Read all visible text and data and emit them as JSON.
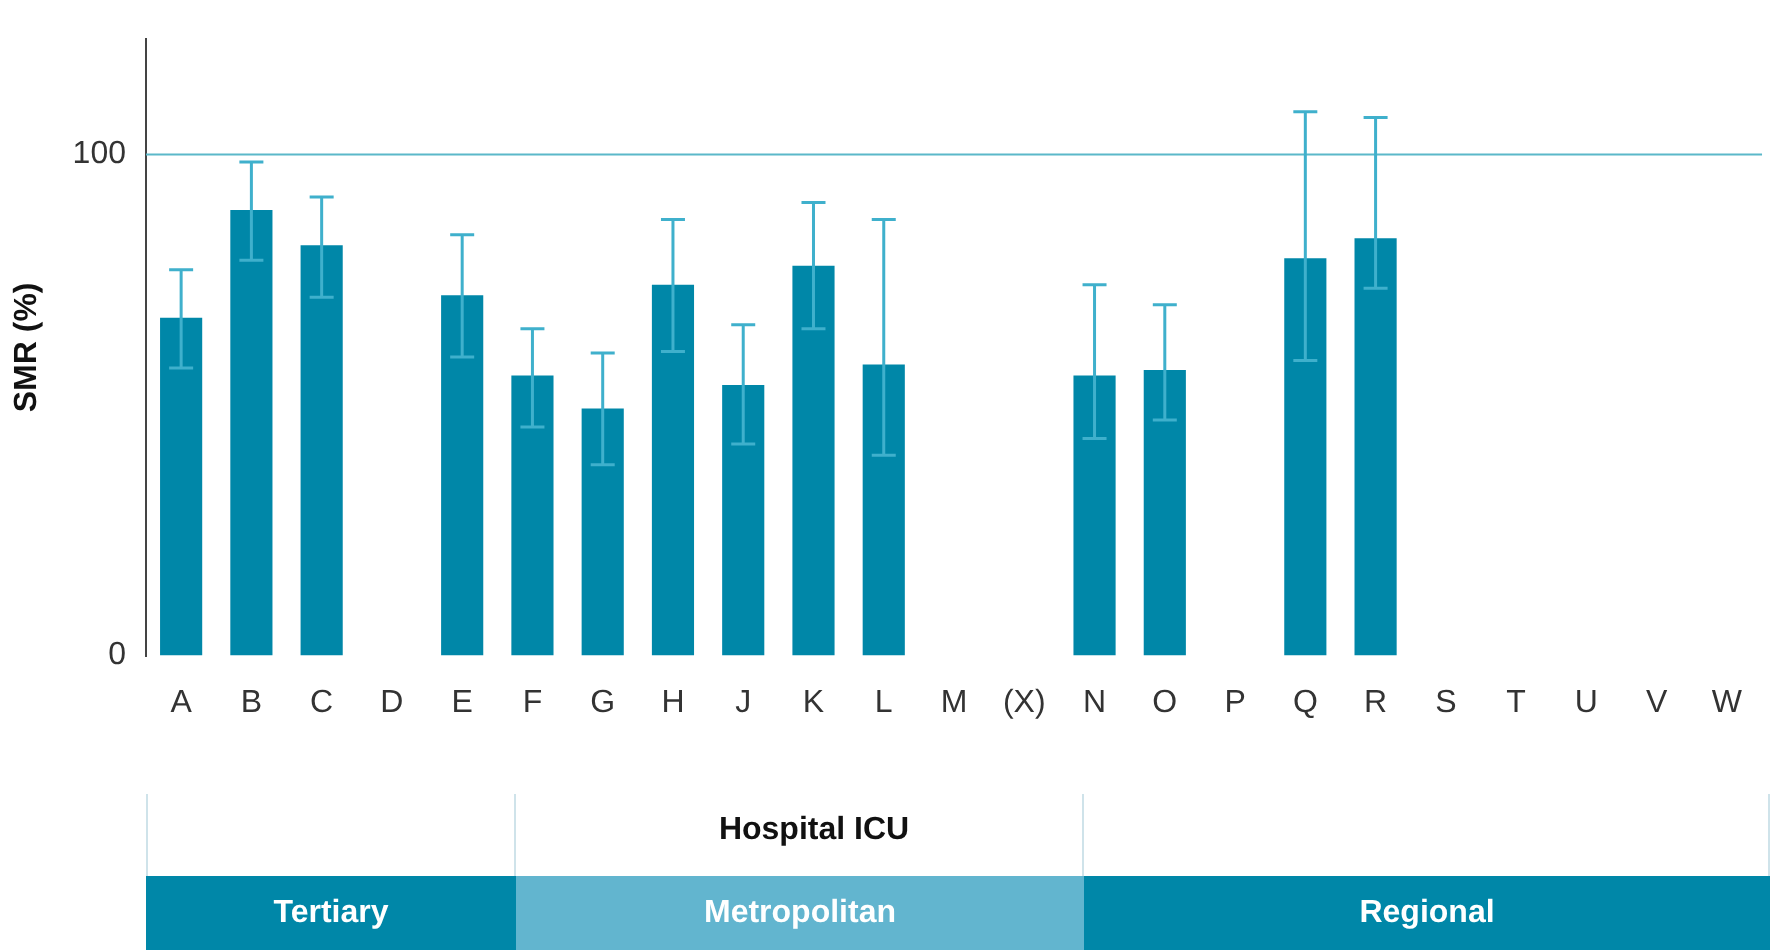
{
  "chart_data": {
    "type": "bar",
    "xlabel": "Hospital ICU",
    "ylabel": "SMR (%)",
    "categories": [
      "A",
      "B",
      "C",
      "D",
      "E",
      "F",
      "G",
      "H",
      "J",
      "K",
      "L",
      "M",
      "(X)",
      "N",
      "O",
      "P",
      "Q",
      "R",
      "S",
      "T",
      "U",
      "V",
      "W"
    ],
    "values": [
      67.4,
      88.9,
      81.9,
      null,
      71.9,
      55.9,
      49.3,
      74,
      54,
      77.8,
      58.1,
      null,
      null,
      55.9,
      57,
      null,
      79.3,
      83.3,
      null,
      null,
      null,
      null,
      null
    ],
    "errors": [
      [
        57.4,
        77
      ],
      [
        78.9,
        98.5
      ],
      [
        71.5,
        91.5
      ],
      null,
      [
        59.6,
        84
      ],
      [
        45.6,
        65.2
      ],
      [
        38.1,
        60.4
      ],
      [
        60.7,
        87
      ],
      [
        42.2,
        66
      ],
      [
        65.2,
        90.4
      ],
      [
        40,
        87
      ],
      null,
      null,
      [
        43.3,
        74
      ],
      [
        47,
        70
      ],
      null,
      [
        58.9,
        108.5
      ],
      [
        73.3,
        107.4
      ],
      null,
      null,
      null,
      null,
      null
    ],
    "color": "#0087a8",
    "ylim": [
      0,
      123
    ],
    "yticks": [
      0,
      100
    ],
    "grid": false,
    "legend": false,
    "ref_lines": [
      {
        "axis": "y",
        "value": 100,
        "color": "#5bb8c9"
      }
    ],
    "annotations": [
      "Tertiary",
      "Metropolitan",
      "Regional"
    ]
  }
}
